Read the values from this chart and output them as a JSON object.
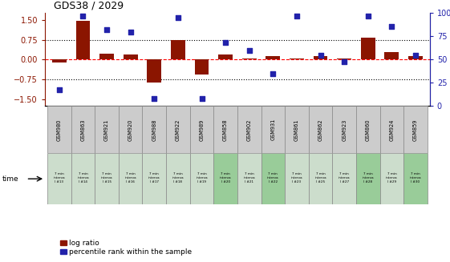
{
  "title": "GDS38 / 2029",
  "samples": [
    "GSM980",
    "GSM863",
    "GSM921",
    "GSM920",
    "GSM988",
    "GSM922",
    "GSM989",
    "GSM858",
    "GSM902",
    "GSM931",
    "GSM861",
    "GSM862",
    "GSM923",
    "GSM860",
    "GSM924",
    "GSM859"
  ],
  "time_labels": [
    "7 min\ninterva\nl #13",
    "7 min\ninterva\nl #14",
    "7 min\ninterva\nl #15",
    "7 min\ninterva\nl #16",
    "7 min\ninterva\nl #17",
    "7 min\ninterva\nl #18",
    "7 min\ninterva\nl #19",
    "7 min\ninterva\nl #20",
    "7 min\ninterva\nl #21",
    "7 min\ninterva\nl #22",
    "7 min\ninterva\nl #23",
    "7 min\ninterva\nl #25",
    "7 min\ninterva\nl #27",
    "7 min\ninterva\nl #28",
    "7 min\ninterva\nl #29",
    "7 min\ninterva\nl #30"
  ],
  "log_ratio": [
    -0.12,
    1.45,
    0.22,
    0.18,
    -0.85,
    0.75,
    -0.55,
    0.18,
    0.04,
    0.12,
    0.05,
    0.12,
    0.05,
    0.82,
    0.28,
    0.12
  ],
  "percentile": [
    18,
    97,
    82,
    80,
    8,
    95,
    8,
    68,
    60,
    35,
    97,
    55,
    48,
    97,
    86,
    55
  ],
  "bar_color": "#8B1500",
  "dot_color": "#2222AA",
  "ylim_left": [
    -1.75,
    1.75
  ],
  "ylim_right": [
    0,
    100
  ],
  "yticks_left": [
    -1.5,
    -0.75,
    0,
    0.75,
    1.5
  ],
  "yticks_right": [
    0,
    25,
    50,
    75,
    100
  ],
  "hlines": [
    -0.75,
    0,
    0.75
  ],
  "hline_styles": [
    "dotted",
    "dashed",
    "dotted"
  ],
  "hline_colors": [
    "black",
    "red",
    "black"
  ],
  "bg_color": "#ffffff",
  "sample_box_color": "#cccccc",
  "time_box_colors": [
    "#ccddcc",
    "#ccddcc",
    "#ccddcc",
    "#ccddcc",
    "#ccddcc",
    "#ccddcc",
    "#ccddcc",
    "#99cc99",
    "#ccddcc",
    "#99cc99",
    "#ccddcc",
    "#ccddcc",
    "#ccddcc",
    "#99cc99",
    "#ccddcc",
    "#99cc99"
  ],
  "legend_labels": [
    "log ratio",
    "percentile rank within the sample"
  ]
}
